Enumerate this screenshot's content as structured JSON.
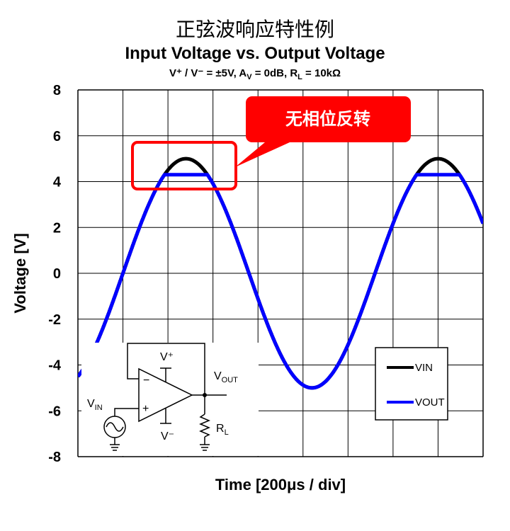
{
  "header": {
    "title_cn": "正弦波响应特性例",
    "title_en": "Input Voltage vs. Output Voltage",
    "conditions": {
      "v_supply": "V⁺ / V⁻ = ±5V, A",
      "av_sub": "V",
      "gain": " = 0dB, R",
      "rl_sub": "L",
      "load": " = 10kΩ"
    }
  },
  "callout": {
    "text": "无相位反转"
  },
  "schematic": {
    "vplus": "V⁺",
    "vminus": "V⁻",
    "vin": "V",
    "vin_sub": "IN",
    "vout": "V",
    "vout_sub": "OUT",
    "rl": "R",
    "rl_sub": "L",
    "minus_sign": "−",
    "plus_sign": "+"
  },
  "colors": {
    "vin": "#000000",
    "vout": "#0000ff",
    "callout": "#ff0000"
  },
  "chart_data": {
    "type": "line",
    "xlabel": "Time [200μs / div]",
    "ylabel": "Voltage [V]",
    "ylim": [
      -8,
      8
    ],
    "yticks": [
      "8",
      "6",
      "4",
      "2",
      "0",
      "-2",
      "-4",
      "-6",
      "-8"
    ],
    "x_divisions": 9,
    "grid": true,
    "legend": "bottom-right",
    "series": [
      {
        "name": "VIN",
        "waveform": "sine",
        "amplitude": 5.0,
        "period_div": 5.6,
        "peak_div": 2.4,
        "note_visible_range_div": [
          0.55,
          8.85
        ]
      },
      {
        "name": "VOUT",
        "waveform": "sine_clipped",
        "amplitude": 5.0,
        "period_div": 5.6,
        "peak_div": 2.4,
        "clip_high": 4.3,
        "clip_low": -5.0
      }
    ]
  }
}
